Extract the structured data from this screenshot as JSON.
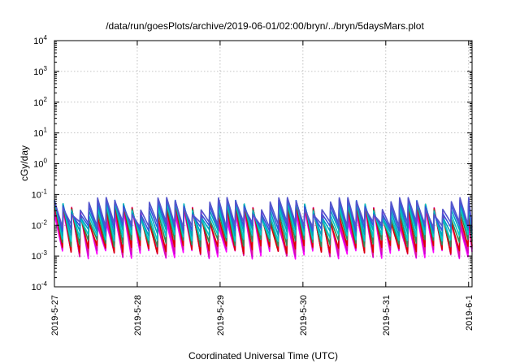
{
  "chart_data": {
    "type": "line",
    "title": "/data/run/goesPlots/archive/2019-06-01/02:00/bryn/../bryn/5daysMars.plot",
    "xlabel": "Coordinated Universal Time (UTC)",
    "ylabel": "cGy/day",
    "y_scale": "log",
    "ylim": [
      0.0001,
      10000
    ],
    "xlim": [
      "2019-05-27T00:00",
      "2019-06-01T01:00"
    ],
    "grid": true,
    "x_ticks": [
      {
        "label": "2019-5-27",
        "value": "2019-05-27"
      },
      {
        "label": "2019-5-28",
        "value": "2019-05-28"
      },
      {
        "label": "2019-5-29",
        "value": "2019-05-29"
      },
      {
        "label": "2019-5-30",
        "value": "2019-05-30"
      },
      {
        "label": "2019-5-31",
        "value": "2019-05-31"
      },
      {
        "label": "2019-6-1",
        "value": "2019-06-01"
      }
    ],
    "y_ticks": [
      {
        "base": "10",
        "exp": "-4",
        "value": 0.0001
      },
      {
        "base": "10",
        "exp": "-3",
        "value": 0.001
      },
      {
        "base": "10",
        "exp": "-2",
        "value": 0.01
      },
      {
        "base": "10",
        "exp": "-1",
        "value": 0.1
      },
      {
        "base": "10",
        "exp": "0",
        "value": 1
      },
      {
        "base": "10",
        "exp": "1",
        "value": 10
      },
      {
        "base": "10",
        "exp": "2",
        "value": 100
      },
      {
        "base": "10",
        "exp": "3",
        "value": 1000
      },
      {
        "base": "10",
        "exp": "4",
        "value": 10000
      }
    ],
    "sawtooth_period_hours": 2.5,
    "series": [
      {
        "color": "#ff00ff",
        "peak_min": 0.009,
        "peak_max": 0.035,
        "trough_min": 0.0008,
        "trough_max": 0.0015
      },
      {
        "color": "#cc00cc",
        "peak_min": 0.01,
        "peak_max": 0.04,
        "trough_min": 0.0009,
        "trough_max": 0.0017
      },
      {
        "color": "#e0119d",
        "peak_min": 0.011,
        "peak_max": 0.045,
        "trough_min": 0.001,
        "trough_max": 0.0019
      },
      {
        "color": "#dd0000",
        "peak_min": 0.012,
        "peak_max": 0.05,
        "trough_min": 0.0012,
        "trough_max": 0.0022
      },
      {
        "color": "#2e8b57",
        "peak_min": 0.014,
        "peak_max": 0.055,
        "trough_min": 0.002,
        "trough_max": 0.0035
      },
      {
        "color": "#00cccc",
        "peak_min": 0.016,
        "peak_max": 0.062,
        "trough_min": 0.003,
        "trough_max": 0.005
      },
      {
        "color": "#00a0c0",
        "peak_min": 0.018,
        "peak_max": 0.068,
        "trough_min": 0.0045,
        "trough_max": 0.0075
      },
      {
        "color": "#3355dd",
        "peak_min": 0.02,
        "peak_max": 0.075,
        "trough_min": 0.0065,
        "trough_max": 0.01
      },
      {
        "color": "#5555cc",
        "peak_min": 0.022,
        "peak_max": 0.082,
        "trough_min": 0.0085,
        "trough_max": 0.013
      }
    ]
  }
}
